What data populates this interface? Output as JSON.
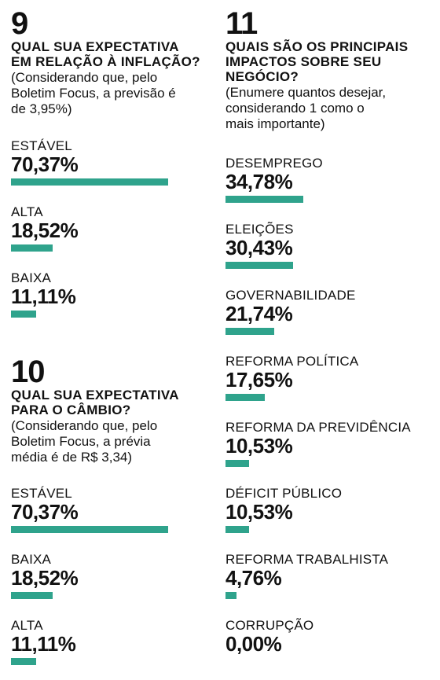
{
  "colors": {
    "bar": "#2fa38c",
    "text": "#111111"
  },
  "questions": [
    {
      "number": "9",
      "title": "QUAL SUA EXPECTATIVA\nEM RELAÇÃO À INFLAÇÃO?",
      "note": "(Considerando que, pelo\nBoletim Focus, a previsão é\nde 3,95%)",
      "items": [
        {
          "label": "ESTÁVEL",
          "value": "70,37%",
          "pct": 70.37
        },
        {
          "label": "ALTA",
          "value": "18,52%",
          "pct": 18.52
        },
        {
          "label": "BAIXA",
          "value": "11,11%",
          "pct": 11.11
        }
      ]
    },
    {
      "number": "10",
      "title": "QUAL SUA EXPECTATIVA\nPARA O CÂMBIO?",
      "note": "(Considerando que, pelo\nBoletim Focus, a prévia\nmédia é de R$ 3,34)",
      "items": [
        {
          "label": "ESTÁVEL",
          "value": "70,37%",
          "pct": 70.37
        },
        {
          "label": "BAIXA",
          "value": "18,52%",
          "pct": 18.52
        },
        {
          "label": "ALTA",
          "value": "11,11%",
          "pct": 11.11
        }
      ]
    },
    {
      "number": "11",
      "title": "QUAIS SÃO OS PRINCIPAIS\nIMPACTOS SOBRE SEU\nNEGÓCIO?",
      "note": "(Enumere quantos desejar,\nconsiderando 1 como o\nmais importante)",
      "items": [
        {
          "label": "DESEMPREGO",
          "value": "34,78%",
          "pct": 34.78
        },
        {
          "label": "ELEIÇÕES",
          "value": "30,43%",
          "pct": 30.43
        },
        {
          "label": "GOVERNABILIDADE",
          "value": "21,74%",
          "pct": 21.74
        },
        {
          "label": "REFORMA POLÍTICA",
          "value": "17,65%",
          "pct": 17.65
        },
        {
          "label": "REFORMA DA PREVIDÊNCIA",
          "value": "10,53%",
          "pct": 10.53
        },
        {
          "label": "DÉFICIT PÚBLICO",
          "value": "10,53%",
          "pct": 10.53
        },
        {
          "label": "REFORMA TRABALHISTA",
          "value": "4,76%",
          "pct": 4.76
        },
        {
          "label": "CORRUPÇÃO",
          "value": "0,00%",
          "pct": 0
        }
      ]
    }
  ],
  "chart_data": [
    {
      "type": "bar",
      "title": "QUAL SUA EXPECTATIVA EM RELAÇÃO À INFLAÇÃO?",
      "categories": [
        "ESTÁVEL",
        "ALTA",
        "BAIXA"
      ],
      "values": [
        70.37,
        18.52,
        11.11
      ]
    },
    {
      "type": "bar",
      "title": "QUAL SUA EXPECTATIVA PARA O CÂMBIO?",
      "categories": [
        "ESTÁVEL",
        "BAIXA",
        "ALTA"
      ],
      "values": [
        70.37,
        18.52,
        11.11
      ]
    },
    {
      "type": "bar",
      "title": "QUAIS SÃO OS PRINCIPAIS IMPACTOS SOBRE SEU NEGÓCIO?",
      "categories": [
        "DESEMPREGO",
        "ELEIÇÕES",
        "GOVERNABILIDADE",
        "REFORMA POLÍTICA",
        "REFORMA DA PREVIDÊNCIA",
        "DÉFICIT PÚBLICO",
        "REFORMA TRABALHISTA",
        "CORRUPÇÃO"
      ],
      "values": [
        34.78,
        30.43,
        21.74,
        17.65,
        10.53,
        10.53,
        4.76,
        0.0
      ]
    }
  ]
}
